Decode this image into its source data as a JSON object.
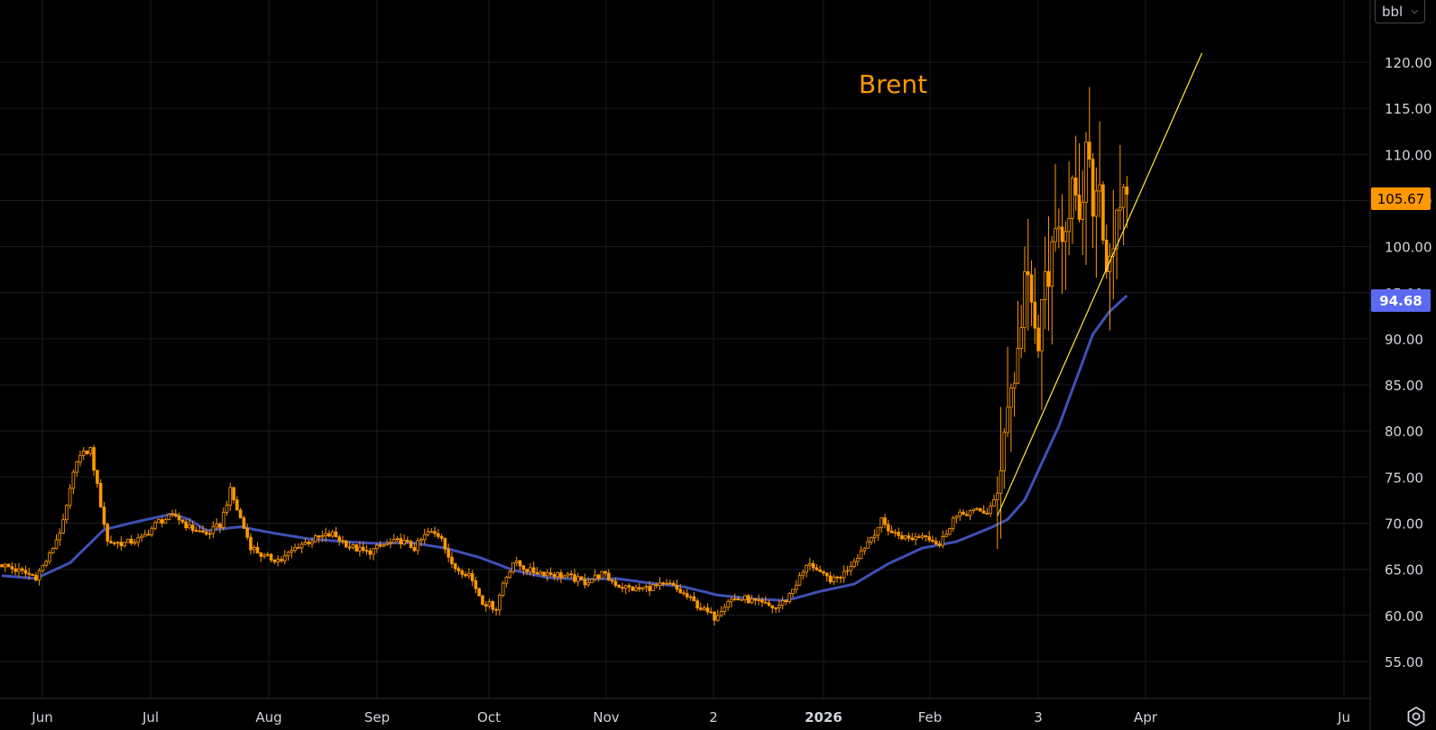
{
  "chart_data": {
    "type": "candlestick",
    "title": "Brent",
    "unit": "bbl",
    "ylim": [
      52,
      124
    ],
    "y_ticks": [
      55,
      60,
      65,
      70,
      75,
      80,
      85,
      90,
      95,
      100,
      105,
      110,
      115,
      120
    ],
    "x_ticks": [
      "Jun",
      "Jul",
      "Aug",
      "Sep",
      "Oct",
      "Nov",
      "2",
      "2026",
      "Feb",
      "3",
      "Apr",
      "Ju"
    ],
    "last_price": "105.67",
    "ma_last": "94.68",
    "grid": true,
    "colors": {
      "up": "#ff9800",
      "down": "#ff9800",
      "ma": "#3f51b5",
      "trendline": "#ffeb3b",
      "title": "#ff9800",
      "ma_label": "#5b6af0"
    },
    "anchors": [
      [
        0,
        65.5
      ],
      [
        5,
        64.8
      ],
      [
        10,
        64.2
      ],
      [
        14,
        66.5
      ],
      [
        18,
        70
      ],
      [
        22,
        77
      ],
      [
        26,
        78
      ],
      [
        29,
        72
      ],
      [
        31,
        68
      ],
      [
        36,
        67.8
      ],
      [
        41,
        68.3
      ],
      [
        46,
        70.2
      ],
      [
        51,
        70.8
      ],
      [
        55,
        69.5
      ],
      [
        60,
        68.8
      ],
      [
        64,
        69.8
      ],
      [
        67,
        73.5
      ],
      [
        70,
        70.5
      ],
      [
        73,
        67.5
      ],
      [
        77,
        66.3
      ],
      [
        82,
        66
      ],
      [
        87,
        67.6
      ],
      [
        92,
        68.3
      ],
      [
        97,
        68.8
      ],
      [
        102,
        67.5
      ],
      [
        107,
        66.8
      ],
      [
        112,
        67.6
      ],
      [
        117,
        68.1
      ],
      [
        121,
        67.3
      ],
      [
        125,
        69
      ],
      [
        129,
        68.6
      ],
      [
        132,
        65.3
      ],
      [
        137,
        64.5
      ],
      [
        141,
        61.5
      ],
      [
        145,
        60.8
      ],
      [
        147,
        63.5
      ],
      [
        150,
        65.8
      ],
      [
        155,
        64.8
      ],
      [
        160,
        64.6
      ],
      [
        166,
        64.2
      ],
      [
        171,
        63.6
      ],
      [
        176,
        64.5
      ],
      [
        181,
        63.2
      ],
      [
        186,
        62.8
      ],
      [
        191,
        63.1
      ],
      [
        196,
        63.3
      ],
      [
        201,
        62
      ],
      [
        206,
        60.5
      ],
      [
        209,
        59.8
      ],
      [
        213,
        61.7
      ],
      [
        218,
        61.8
      ],
      [
        222,
        61.3
      ],
      [
        227,
        60.8
      ],
      [
        230,
        61.7
      ],
      [
        233,
        63.5
      ],
      [
        237,
        65.8
      ],
      [
        240,
        64.4
      ],
      [
        244,
        63.8
      ],
      [
        247,
        64.6
      ],
      [
        251,
        66.5
      ],
      [
        255,
        68.5
      ],
      [
        258,
        70.2
      ],
      [
        261,
        69
      ],
      [
        266,
        68.3
      ],
      [
        271,
        68.8
      ],
      [
        275,
        67.6
      ],
      [
        279,
        70.5
      ],
      [
        284,
        71.3
      ],
      [
        289,
        71.2
      ],
      [
        292,
        72.8
      ],
      [
        294,
        81
      ],
      [
        296,
        84.5
      ],
      [
        298,
        88
      ],
      [
        300,
        97
      ],
      [
        302,
        93
      ],
      [
        304,
        89
      ],
      [
        306,
        96.5
      ],
      [
        308,
        98.5
      ],
      [
        310,
        101.5
      ],
      [
        312,
        103
      ],
      [
        314,
        106.5
      ],
      [
        316,
        101
      ],
      [
        318,
        110
      ],
      [
        320,
        105
      ],
      [
        322,
        107
      ],
      [
        324,
        98
      ],
      [
        326,
        101
      ],
      [
        328,
        103
      ],
      [
        330,
        105.67
      ]
    ],
    "ma_anchors": [
      [
        0,
        64.3
      ],
      [
        10,
        64
      ],
      [
        20,
        65.7
      ],
      [
        30,
        69.3
      ],
      [
        40,
        70.2
      ],
      [
        50,
        71
      ],
      [
        55,
        70.4
      ],
      [
        60,
        69.2
      ],
      [
        70,
        69.6
      ],
      [
        80,
        68.9
      ],
      [
        90,
        68.3
      ],
      [
        100,
        68
      ],
      [
        110,
        67.8
      ],
      [
        120,
        67.9
      ],
      [
        130,
        67.3
      ],
      [
        140,
        66.3
      ],
      [
        150,
        64.9
      ],
      [
        160,
        64.1
      ],
      [
        170,
        63.9
      ],
      [
        180,
        64
      ],
      [
        190,
        63.5
      ],
      [
        200,
        63.1
      ],
      [
        210,
        62.2
      ],
      [
        220,
        61.8
      ],
      [
        230,
        61.6
      ],
      [
        240,
        62.6
      ],
      [
        250,
        63.4
      ],
      [
        260,
        65.6
      ],
      [
        270,
        67.3
      ],
      [
        280,
        68
      ],
      [
        290,
        69.5
      ],
      [
        295,
        70.4
      ],
      [
        300,
        72.5
      ],
      [
        305,
        76.5
      ],
      [
        310,
        80.5
      ],
      [
        315,
        85.5
      ],
      [
        320,
        90.5
      ],
      [
        325,
        93
      ],
      [
        330,
        94.68
      ]
    ],
    "trendline": {
      "start": [
        292,
        70.8
      ],
      "end": [
        352,
        121
      ]
    }
  }
}
